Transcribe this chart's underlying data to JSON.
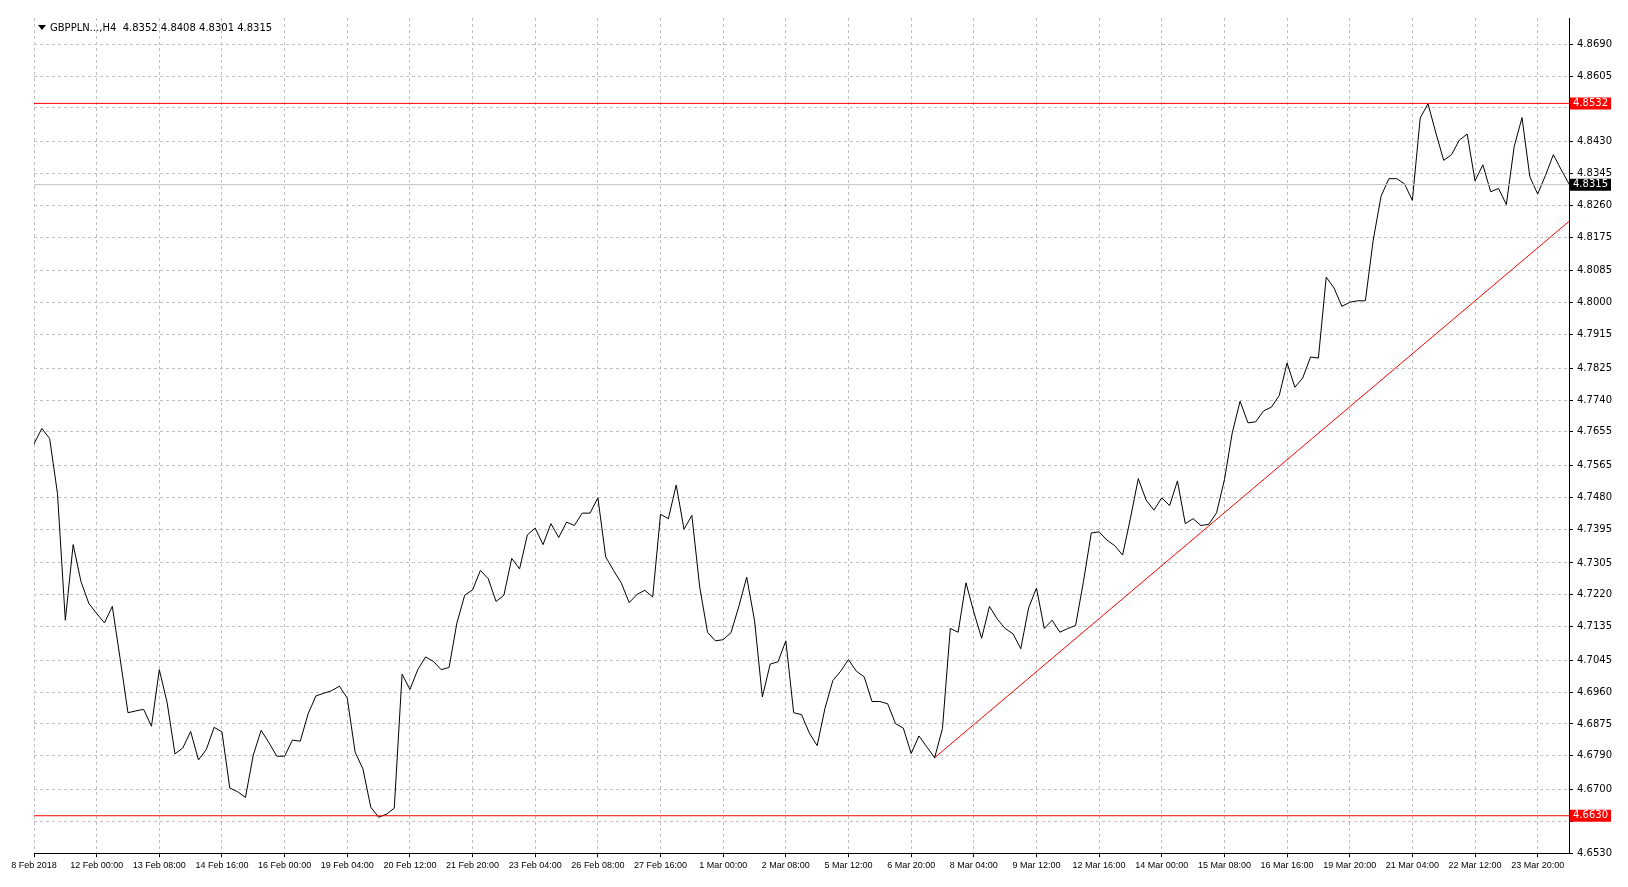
{
  "chart_data": {
    "type": "line",
    "title": "GBPPLN...,H4  4.8352 4.8408 4.8301 4.8315",
    "categories": [
      "8 Feb 2018",
      null,
      null,
      null,
      null,
      null,
      null,
      null,
      "12 Feb 00:00",
      null,
      null,
      null,
      null,
      null,
      null,
      null,
      "13 Feb 08:00",
      null,
      null,
      null,
      null,
      null,
      null,
      null,
      "14 Feb 16:00",
      null,
      null,
      null,
      null,
      null,
      null,
      null,
      "16 Feb 00:00",
      null,
      null,
      null,
      null,
      null,
      null,
      null,
      "19 Feb 04:00",
      null,
      null,
      null,
      null,
      null,
      null,
      null,
      "20 Feb 12:00",
      null,
      null,
      null,
      null,
      null,
      null,
      null,
      "21 Feb 20:00",
      null,
      null,
      null,
      null,
      null,
      null,
      null,
      "23 Feb 04:00",
      null,
      null,
      null,
      null,
      null,
      null,
      null,
      "26 Feb 08:00",
      null,
      null,
      null,
      null,
      null,
      null,
      null,
      "27 Feb 16:00",
      null,
      null,
      null,
      null,
      null,
      null,
      null,
      "1 Mar 00:00",
      null,
      null,
      null,
      null,
      null,
      null,
      null,
      "2 Mar 08:00",
      null,
      null,
      null,
      null,
      null,
      null,
      null,
      "5 Mar 12:00",
      null,
      null,
      null,
      null,
      null,
      null,
      null,
      "6 Mar 20:00",
      null,
      null,
      null,
      null,
      null,
      null,
      null,
      "8 Mar 04:00",
      null,
      null,
      null,
      null,
      null,
      null,
      null,
      "9 Mar 12:00",
      null,
      null,
      null,
      null,
      null,
      null,
      null,
      "12 Mar 16:00",
      null,
      null,
      null,
      null,
      null,
      null,
      null,
      "14 Mar 00:00",
      null,
      null,
      null,
      null,
      null,
      null,
      null,
      "15 Mar 08:00",
      null,
      null,
      null,
      null,
      null,
      null,
      null,
      "16 Mar 16:00",
      null,
      null,
      null,
      null,
      null,
      null,
      null,
      "19 Mar 20:00",
      null,
      null,
      null,
      null,
      null,
      null,
      null,
      "21 Mar 04:00",
      null,
      null,
      null,
      null,
      null,
      null,
      null,
      "22 Mar 12:00",
      null,
      null,
      null,
      null,
      null,
      null,
      null,
      "23 Mar 20:00",
      null,
      null,
      null,
      null
    ],
    "ylim": [
      4.653,
      4.876
    ],
    "yticks": [
      {
        "value": 4.653,
        "label": "4.6530"
      },
      {
        "value": 4.6615,
        "label": null
      },
      {
        "value": 4.67,
        "label": "4.6700"
      },
      {
        "value": 4.679,
        "label": "4.6790"
      },
      {
        "value": 4.6875,
        "label": "4.6875"
      },
      {
        "value": 4.696,
        "label": "4.6960"
      },
      {
        "value": 4.7045,
        "label": "4.7045"
      },
      {
        "value": 4.7135,
        "label": "4.7135"
      },
      {
        "value": 4.722,
        "label": "4.7220"
      },
      {
        "value": 4.7305,
        "label": "4.7305"
      },
      {
        "value": 4.7395,
        "label": "4.7395"
      },
      {
        "value": 4.748,
        "label": "4.7480"
      },
      {
        "value": 4.7565,
        "label": "4.7565"
      },
      {
        "value": 4.7655,
        "label": "4.7655"
      },
      {
        "value": 4.774,
        "label": "4.7740"
      },
      {
        "value": 4.7825,
        "label": "4.7825"
      },
      {
        "value": 4.7915,
        "label": "4.7915"
      },
      {
        "value": 4.8,
        "label": "4.8000"
      },
      {
        "value": 4.8085,
        "label": "4.8085"
      },
      {
        "value": 4.8175,
        "label": "4.8175"
      },
      {
        "value": 4.826,
        "label": "4.8260"
      },
      {
        "value": 4.8345,
        "label": "4.8345"
      },
      {
        "value": 4.843,
        "label": "4.8430"
      },
      {
        "value": 4.852,
        "label": null
      },
      {
        "value": 4.8605,
        "label": "4.8605"
      },
      {
        "value": 4.869,
        "label": "4.8690"
      }
    ],
    "grid": true,
    "legend": false,
    "marker": "none",
    "line_style": "solid",
    "ref_lines": [
      {
        "axis": "y",
        "value": 4.8532,
        "label": "4.8532",
        "color": "#ff0000"
      },
      {
        "axis": "y",
        "value": 4.663,
        "label": "4.6630",
        "color": "#ff0000"
      },
      {
        "axis": "y",
        "value": 4.8315,
        "label": "4.8315",
        "color": "#c0c0c0"
      }
    ],
    "series": [
      {
        "color": "#000000",
        "values": [
          4.7623,
          4.7664,
          4.7637,
          4.749,
          4.7152,
          4.7354,
          4.7255,
          4.7197,
          4.717,
          4.7145,
          4.7189,
          4.7049,
          4.6905,
          4.691,
          4.6914,
          4.6869,
          4.702,
          4.6932,
          4.6795,
          4.6811,
          4.6855,
          4.6779,
          4.6807,
          4.6866,
          4.6854,
          4.6704,
          4.6694,
          4.6679,
          4.6792,
          4.6858,
          4.6825,
          4.6789,
          4.6789,
          4.6832,
          4.6829,
          4.6902,
          4.695,
          4.6957,
          4.6964,
          4.6976,
          4.6944,
          4.68,
          4.6755,
          4.6653,
          4.6626,
          4.6634,
          4.665,
          4.7008,
          4.6967,
          4.702,
          4.7054,
          4.7042,
          4.702,
          4.7026,
          4.7145,
          4.7219,
          4.7233,
          4.7285,
          4.7263,
          4.7202,
          4.7219,
          4.7317,
          4.7289,
          4.738,
          4.7398,
          4.7354,
          4.741,
          4.7373,
          4.7414,
          4.7405,
          4.7438,
          4.7438,
          4.7479,
          4.7321,
          4.7285,
          4.7251,
          4.7199,
          4.7221,
          4.7232,
          4.7214,
          4.7435,
          4.7423,
          4.7513,
          4.7395,
          4.7432,
          4.7241,
          4.712,
          4.7097,
          4.71,
          4.7119,
          4.7189,
          4.7267,
          4.7152,
          4.6947,
          4.7035,
          4.7041,
          4.7097,
          4.6905,
          4.69,
          4.6851,
          4.6817,
          4.6917,
          4.6991,
          4.7016,
          4.7047,
          4.7016,
          4.7001,
          4.6935,
          4.6935,
          4.6929,
          4.6876,
          4.6864,
          4.6796,
          4.6843,
          4.6814,
          4.6785,
          4.6863,
          4.713,
          4.712,
          4.7252,
          4.7174,
          4.7104,
          4.7189,
          4.7155,
          4.713,
          4.7116,
          4.7076,
          4.7185,
          4.7238,
          4.713,
          4.7152,
          4.712,
          4.713,
          4.7138,
          4.7255,
          4.7385,
          4.7388,
          4.7366,
          4.7351,
          4.7326,
          4.7424,
          4.753,
          4.7473,
          4.7446,
          4.7479,
          4.7458,
          4.7524,
          4.741,
          4.7423,
          4.7405,
          4.7408,
          4.7439,
          4.7527,
          4.7652,
          4.7737,
          4.7679,
          4.7682,
          4.7711,
          4.7721,
          4.7752,
          4.7839,
          4.7774,
          4.7799,
          4.7855,
          4.7852,
          4.8068,
          4.8039,
          4.799,
          4.8001,
          4.8005,
          4.8005,
          4.8167,
          4.8284,
          4.8331,
          4.8331,
          4.8317,
          4.8273,
          4.8493,
          4.8531,
          4.8453,
          4.838,
          4.8395,
          4.8434,
          4.845,
          4.8325,
          4.8368,
          4.8296,
          4.8305,
          4.8262,
          4.8417,
          4.8494,
          4.8336,
          4.829,
          4.834,
          4.8395,
          4.8355,
          4.8317
        ]
      },
      {
        "type": "line",
        "color": "#ff0000",
        "values": [
          null,
          null,
          null,
          null,
          null,
          null,
          null,
          null,
          null,
          null,
          null,
          null,
          null,
          null,
          null,
          null,
          null,
          null,
          null,
          null,
          null,
          null,
          null,
          null,
          null,
          null,
          null,
          null,
          null,
          null,
          null,
          null,
          null,
          null,
          null,
          null,
          null,
          null,
          null,
          null,
          null,
          null,
          null,
          null,
          null,
          null,
          null,
          null,
          null,
          null,
          null,
          null,
          null,
          null,
          null,
          null,
          null,
          null,
          null,
          null,
          null,
          null,
          null,
          null,
          null,
          null,
          null,
          null,
          null,
          null,
          null,
          null,
          null,
          null,
          null,
          null,
          null,
          null,
          null,
          null,
          null,
          null,
          null,
          null,
          null,
          null,
          null,
          null,
          null,
          null,
          null,
          null,
          null,
          null,
          null,
          null,
          null,
          null,
          null,
          null,
          null,
          null,
          null,
          null,
          null,
          null,
          null,
          null,
          null,
          null,
          null,
          null,
          null,
          null,
          null,
          4.6785,
          null,
          null,
          null,
          null,
          null,
          null,
          null,
          null,
          null,
          null,
          null,
          null,
          null,
          null,
          null,
          null,
          null,
          null,
          null,
          null,
          null,
          null,
          null,
          null,
          null,
          null,
          null,
          null,
          null,
          null,
          null,
          null,
          null,
          null,
          null,
          null,
          null,
          null,
          null,
          null,
          null,
          null,
          null,
          null,
          null,
          null,
          null,
          null,
          null,
          null,
          null,
          null,
          null,
          null,
          null,
          null,
          null,
          null,
          null,
          null,
          null,
          null,
          null,
          null,
          null,
          null,
          null,
          null,
          null,
          null,
          null,
          null,
          null,
          null,
          null,
          null,
          null,
          null,
          null,
          null,
          4.8217
        ]
      }
    ]
  }
}
